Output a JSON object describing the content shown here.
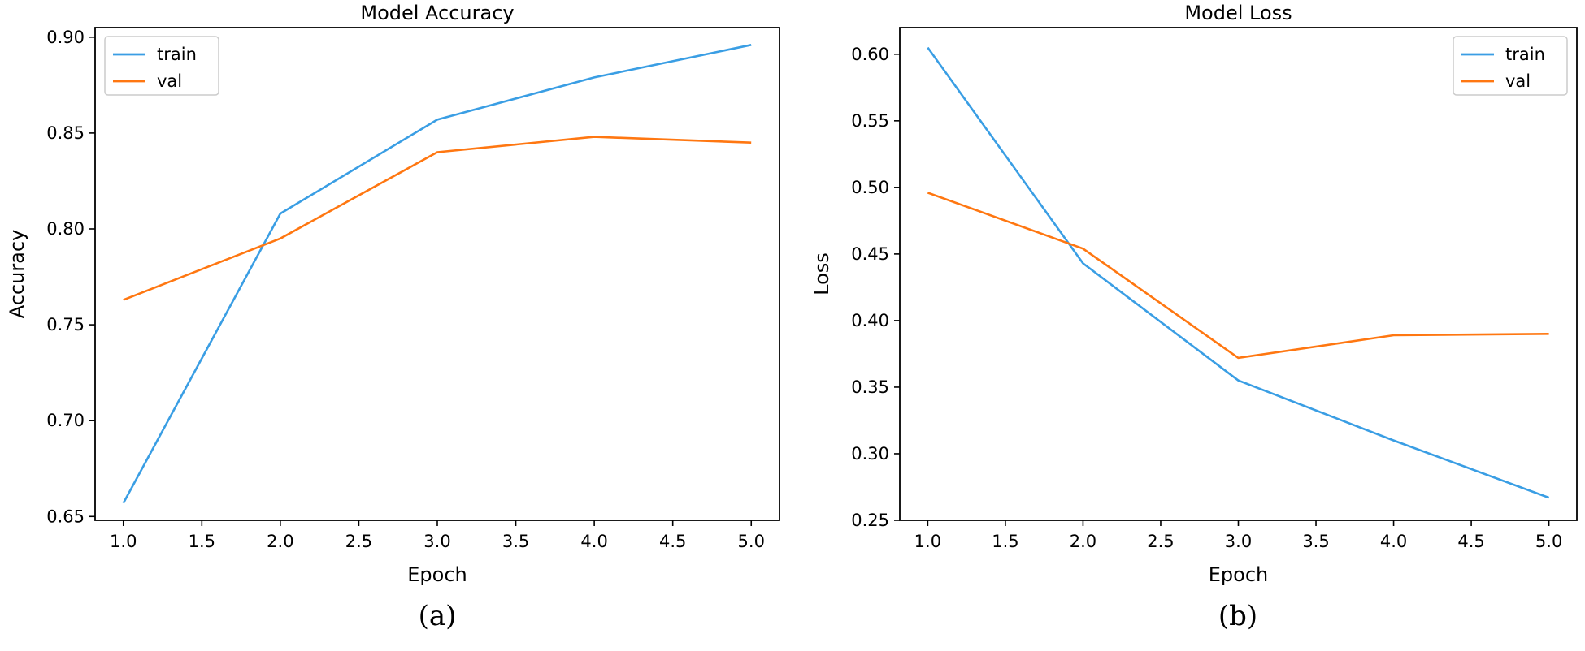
{
  "chart_data": [
    {
      "type": "line",
      "title": "Model Accuracy",
      "xlabel": "Epoch",
      "ylabel": "Accuracy",
      "caption": "(a)",
      "xlim": [
        0.82,
        5.18
      ],
      "ylim": [
        0.648,
        0.905
      ],
      "xticks": [
        1.0,
        1.5,
        2.0,
        2.5,
        3.0,
        3.5,
        4.0,
        4.5,
        5.0
      ],
      "xtick_labels": [
        "1.0",
        "1.5",
        "2.0",
        "2.5",
        "3.0",
        "3.5",
        "4.0",
        "4.5",
        "5.0"
      ],
      "yticks": [
        0.65,
        0.7,
        0.75,
        0.8,
        0.85,
        0.9
      ],
      "ytick_labels": [
        "0.65",
        "0.70",
        "0.75",
        "0.80",
        "0.85",
        "0.90"
      ],
      "x": [
        1,
        2,
        3,
        4,
        5
      ],
      "series": [
        {
          "name": "train",
          "color": "#3a9ee4",
          "values": [
            0.657,
            0.808,
            0.857,
            0.879,
            0.896
          ]
        },
        {
          "name": "val",
          "color": "#ff7711",
          "values": [
            0.763,
            0.795,
            0.84,
            0.848,
            0.845
          ]
        }
      ],
      "legend_position": "top-left",
      "grid": false
    },
    {
      "type": "line",
      "title": "Model Loss",
      "xlabel": "Epoch",
      "ylabel": "Loss",
      "caption": "(b)",
      "xlim": [
        0.82,
        5.18
      ],
      "ylim": [
        0.25,
        0.62
      ],
      "xticks": [
        1.0,
        1.5,
        2.0,
        2.5,
        3.0,
        3.5,
        4.0,
        4.5,
        5.0
      ],
      "xtick_labels": [
        "1.0",
        "1.5",
        "2.0",
        "2.5",
        "3.0",
        "3.5",
        "4.0",
        "4.5",
        "5.0"
      ],
      "yticks": [
        0.25,
        0.3,
        0.35,
        0.4,
        0.45,
        0.5,
        0.55,
        0.6
      ],
      "ytick_labels": [
        "0.25",
        "0.30",
        "0.35",
        "0.40",
        "0.45",
        "0.50",
        "0.55",
        "0.60"
      ],
      "x": [
        1,
        2,
        3,
        4,
        5
      ],
      "series": [
        {
          "name": "train",
          "color": "#3a9ee4",
          "values": [
            0.605,
            0.443,
            0.355,
            0.31,
            0.267
          ]
        },
        {
          "name": "val",
          "color": "#ff7711",
          "values": [
            0.496,
            0.454,
            0.372,
            0.389,
            0.39
          ]
        }
      ],
      "legend_position": "top-right",
      "grid": false
    }
  ]
}
